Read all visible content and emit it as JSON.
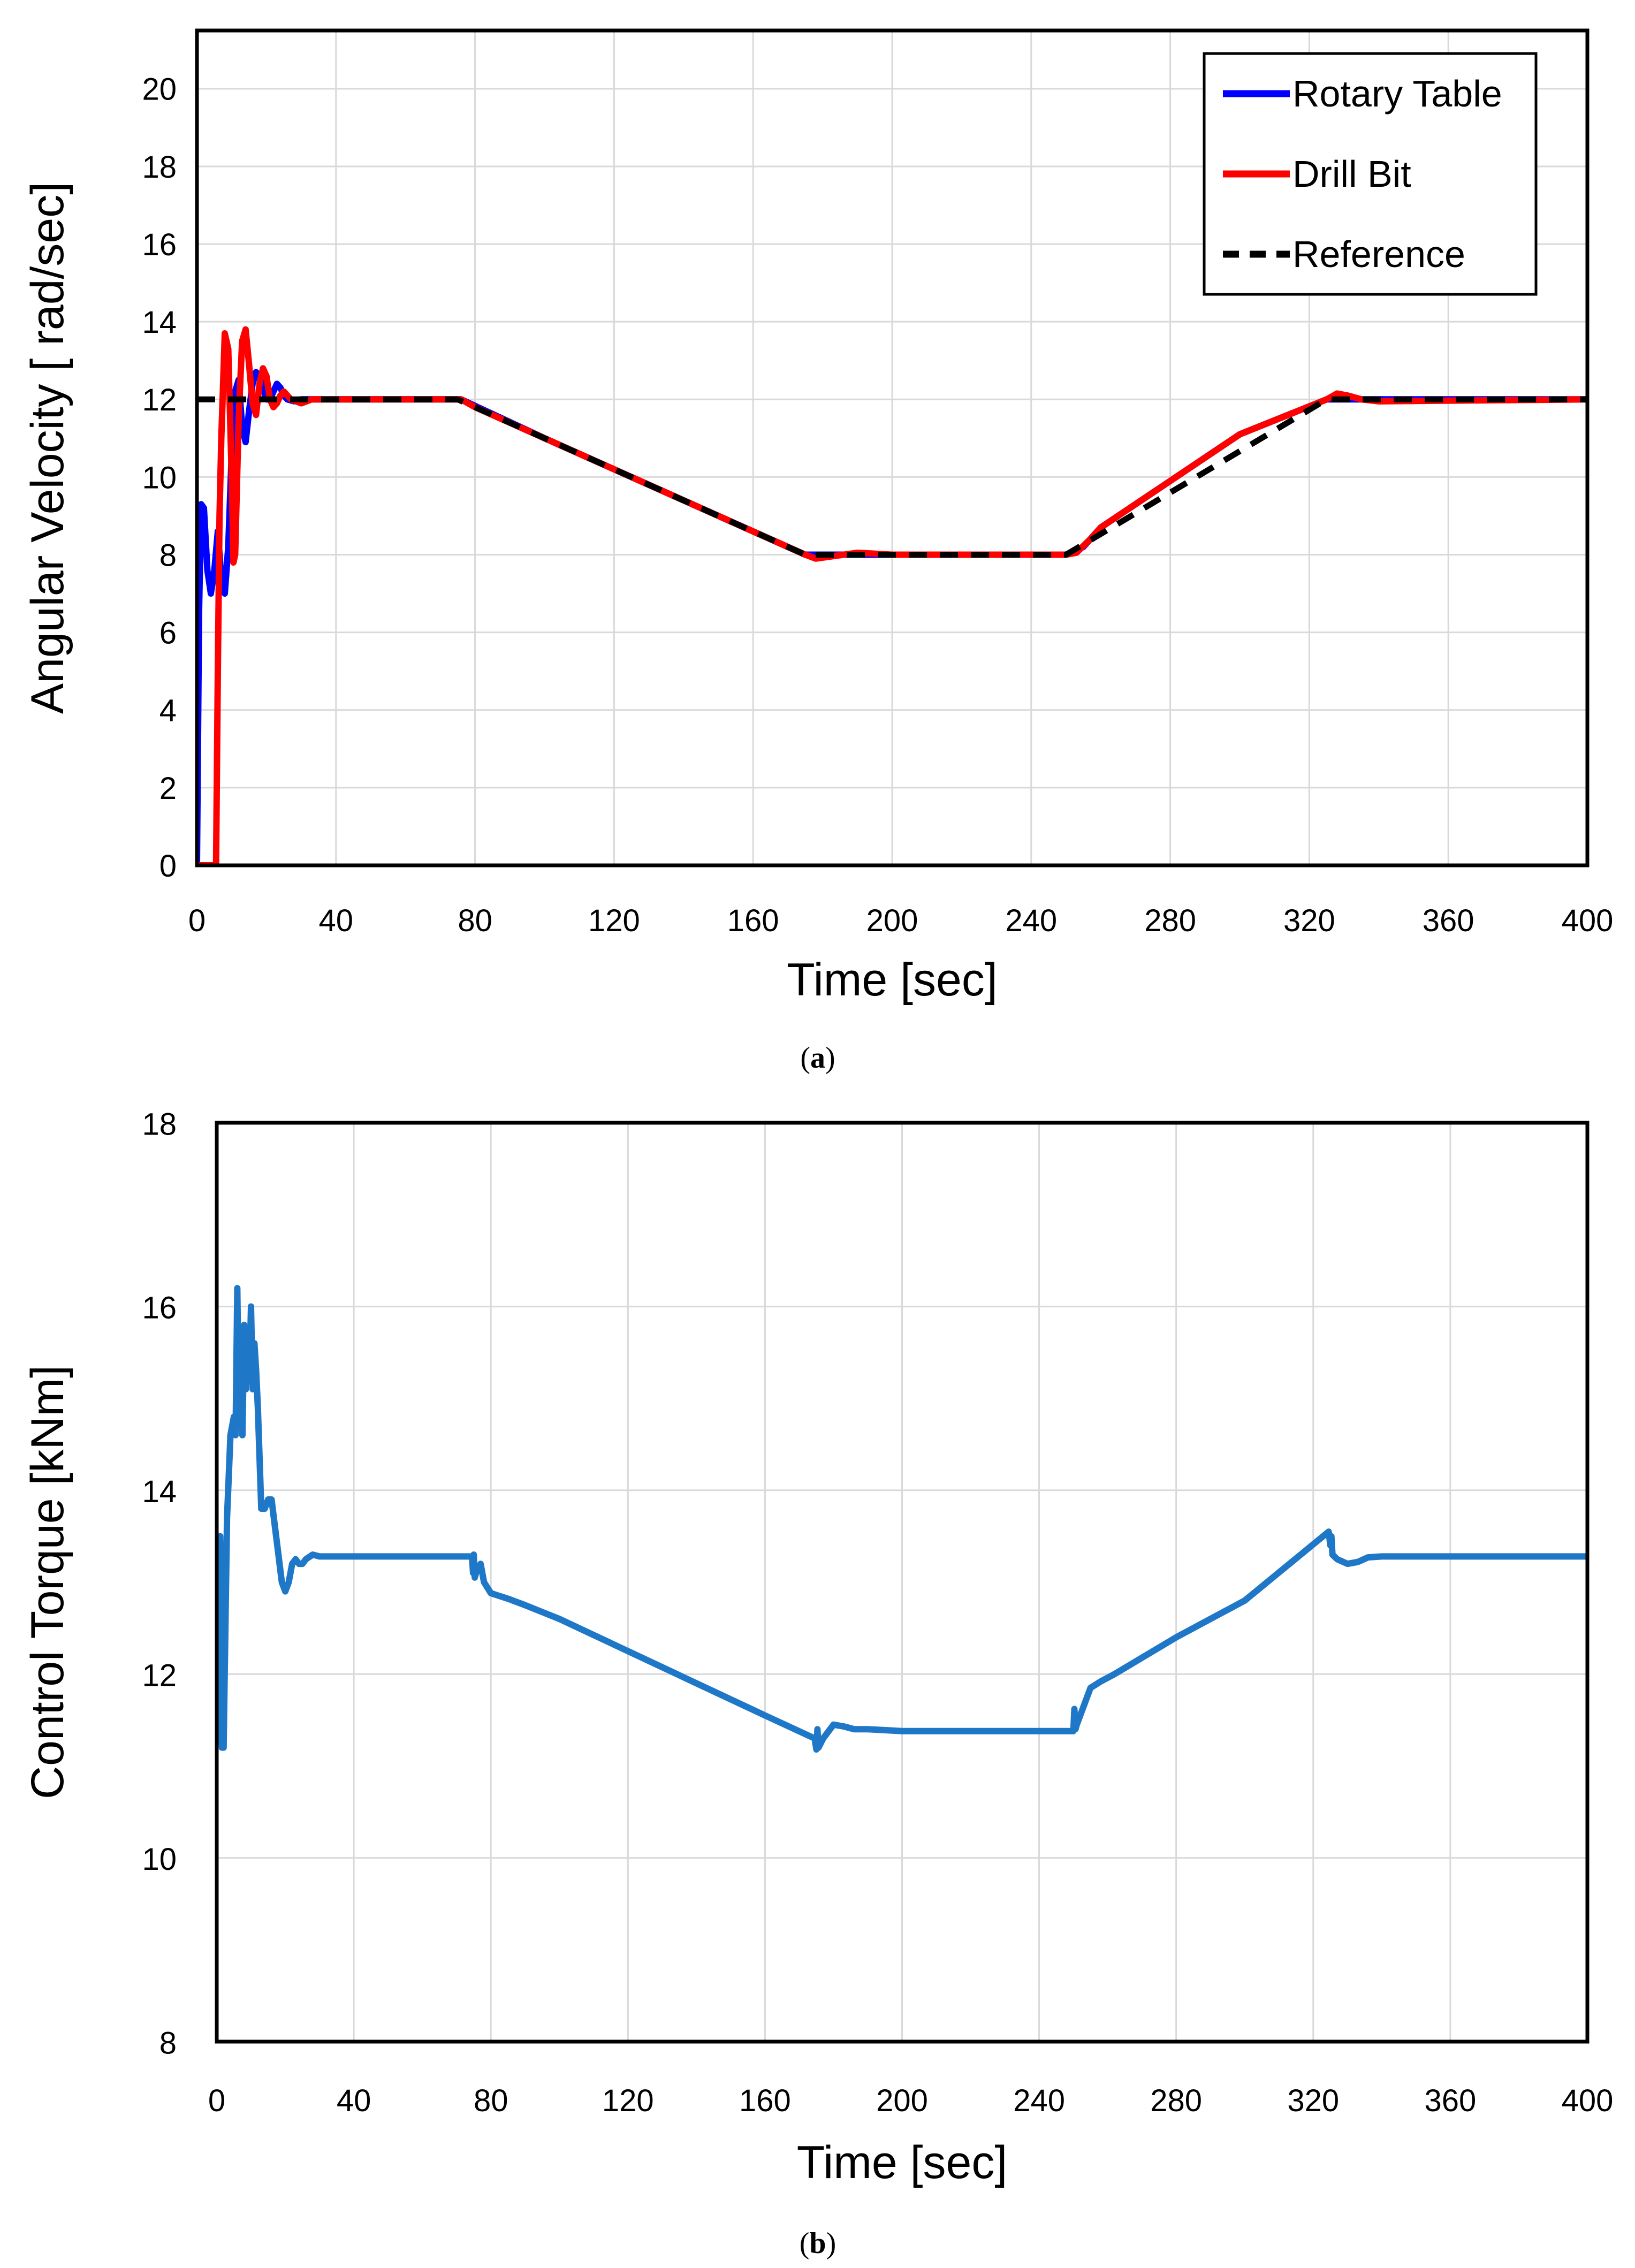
{
  "chart_data": [
    {
      "type": "line",
      "panel": "a",
      "caption_letter": "a",
      "xlabel": "Time [sec]",
      "ylabel": "Angular Velocity [ rad/sec]",
      "xlim": [
        0,
        400
      ],
      "ylim": [
        0,
        21.5
      ],
      "xticks": [
        0,
        40,
        80,
        120,
        160,
        200,
        240,
        280,
        320,
        360,
        400
      ],
      "yticks": [
        0,
        2,
        4,
        6,
        8,
        10,
        12,
        14,
        16,
        18,
        20
      ],
      "grid": true,
      "legend_position": "top-right",
      "series": [
        {
          "name": "Rotary Table",
          "color": "#0000ff",
          "style": "solid",
          "x": [
            0,
            0.6,
            1.2,
            2,
            3,
            4,
            5,
            6,
            7,
            8,
            9,
            10,
            11,
            12,
            13,
            14,
            15,
            16,
            17,
            18,
            19,
            20,
            21,
            22,
            23,
            24,
            25,
            26,
            28,
            30,
            33,
            36,
            40,
            76,
            100,
            130,
            160,
            175,
            180,
            190,
            200,
            250,
            255,
            260,
            280,
            300,
            325,
            330,
            335,
            340,
            400
          ],
          "y": [
            0,
            6.5,
            9.3,
            9.2,
            7.6,
            7.0,
            7.6,
            8.6,
            7.4,
            7.0,
            8.2,
            10.6,
            12.2,
            12.5,
            11.3,
            10.9,
            11.7,
            12.4,
            12.7,
            12.6,
            12.3,
            12.0,
            12.0,
            12.2,
            12.4,
            12.3,
            12.1,
            12.0,
            11.95,
            12.0,
            12.0,
            12.0,
            12.0,
            12.0,
            11.0,
            9.8,
            8.6,
            8.0,
            8.0,
            8.0,
            8.0,
            8.0,
            8.2,
            8.7,
            9.9,
            11.1,
            12.0,
            12.0,
            12.0,
            12.0,
            12.0
          ]
        },
        {
          "name": "Drill Bit",
          "color": "#ff0000",
          "style": "solid",
          "x": [
            0,
            1,
            2,
            3,
            4,
            5,
            5.5,
            6,
            6.5,
            7,
            8,
            9,
            10,
            10.5,
            11,
            12,
            13,
            14,
            15,
            16,
            17,
            18,
            19,
            20,
            21,
            22,
            23,
            24,
            25,
            27,
            30,
            33,
            36,
            40,
            76,
            80,
            100,
            130,
            160,
            175,
            178,
            182,
            190,
            200,
            250,
            253,
            257,
            260,
            280,
            300,
            325,
            328,
            331,
            335,
            340,
            400
          ],
          "y": [
            0,
            0,
            0,
            0,
            0,
            0,
            0,
            5,
            9,
            11,
            13.7,
            13.3,
            10,
            7.8,
            8.0,
            11.5,
            13.5,
            13.8,
            12.9,
            11.9,
            11.6,
            12.4,
            12.8,
            12.6,
            12.0,
            11.8,
            11.9,
            12.1,
            12.2,
            12.0,
            11.9,
            12.0,
            12.0,
            12.0,
            12.0,
            11.8,
            11.0,
            9.8,
            8.6,
            8.0,
            7.9,
            7.95,
            8.05,
            8.0,
            8.0,
            8.05,
            8.4,
            8.7,
            9.9,
            11.1,
            12.0,
            12.15,
            12.1,
            12.0,
            11.95,
            12.0
          ]
        },
        {
          "name": "Reference",
          "color": "#000000",
          "style": "dashed",
          "x": [
            0,
            75,
            175,
            250,
            325,
            400
          ],
          "y": [
            12,
            12,
            8,
            8,
            12,
            12
          ]
        }
      ]
    },
    {
      "type": "line",
      "panel": "b",
      "caption_letter": "b",
      "xlabel": "Time [sec]",
      "ylabel": "Control Torque [kNm]",
      "xlim": [
        0,
        400
      ],
      "ylim": [
        8,
        18
      ],
      "xticks": [
        0,
        40,
        80,
        120,
        160,
        200,
        240,
        280,
        320,
        360,
        400
      ],
      "yticks": [
        8,
        10,
        12,
        14,
        16,
        18
      ],
      "grid": true,
      "series": [
        {
          "name": "Control Torque",
          "color": "#1f77c8",
          "style": "solid",
          "x": [
            0.5,
            1,
            1.5,
            2,
            3,
            4,
            5,
            5.5,
            6,
            6.5,
            7,
            7.5,
            8,
            8.5,
            9,
            9.5,
            10,
            10.5,
            11,
            11.5,
            12,
            13,
            14,
            15,
            16,
            17,
            18,
            19,
            20,
            21,
            22,
            23,
            24,
            25,
            26,
            28,
            30,
            32,
            35,
            40,
            74.5,
            74.8,
            75,
            75.3,
            76,
            77,
            78,
            80,
            85,
            90,
            100,
            120,
            140,
            160,
            174.5,
            175,
            175.3,
            175.6,
            177,
            180,
            183,
            186,
            190,
            200,
            250,
            250.3,
            250.6,
            251,
            253,
            255,
            258,
            262,
            280,
            300,
            324.5,
            325,
            325.3,
            325.6,
            327,
            330,
            333,
            336,
            340,
            360,
            400
          ],
          "y": [
            12.8,
            13.5,
            11.2,
            11.2,
            13.7,
            14.6,
            14.8,
            14.6,
            16.2,
            14.7,
            15.4,
            14.6,
            15.8,
            15.1,
            15.7,
            15.2,
            16.0,
            15.1,
            15.6,
            15.3,
            14.9,
            13.8,
            13.8,
            13.9,
            13.9,
            13.6,
            13.3,
            13.0,
            12.9,
            13.0,
            13.2,
            13.25,
            13.2,
            13.2,
            13.25,
            13.3,
            13.28,
            13.28,
            13.28,
            13.28,
            13.28,
            13.1,
            13.3,
            13.05,
            13.15,
            13.2,
            13.0,
            12.88,
            12.82,
            12.75,
            12.6,
            12.25,
            11.9,
            11.55,
            11.3,
            11.18,
            11.4,
            11.2,
            11.3,
            11.45,
            11.43,
            11.4,
            11.4,
            11.38,
            11.38,
            11.62,
            11.4,
            11.45,
            11.65,
            11.85,
            11.92,
            12.0,
            12.4,
            12.8,
            13.55,
            13.4,
            13.5,
            13.3,
            13.25,
            13.2,
            13.22,
            13.27,
            13.28,
            13.28,
            13.28
          ]
        }
      ]
    }
  ]
}
